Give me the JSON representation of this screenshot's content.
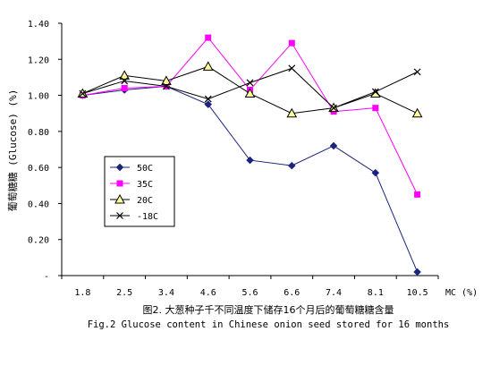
{
  "chart_data": {
    "type": "line",
    "ylabel": "葡萄糖糖 (Glucose) (%)",
    "xlabel": "MC (%)",
    "categories": [
      "1.8",
      "2.5",
      "3.4",
      "4.6",
      "5.6",
      "6.6",
      "7.4",
      "8.1",
      "10.5"
    ],
    "y_tick_labels": [
      "-",
      "0.20",
      "0.40",
      "0.60",
      "0.80",
      "1.00",
      "1.20",
      "1.40"
    ],
    "ylim": [
      0,
      1.4
    ],
    "grid": false,
    "legend_position": "left",
    "series": [
      {
        "name": "50C",
        "color": "#1a237e",
        "marker": "diamond",
        "values": [
          1.0,
          1.03,
          1.05,
          0.95,
          0.64,
          0.61,
          0.72,
          0.57,
          0.02
        ]
      },
      {
        "name": "35C",
        "color": "#ff00ff",
        "marker": "square",
        "values": [
          1.0,
          1.04,
          1.05,
          1.32,
          1.03,
          1.29,
          0.91,
          0.93,
          0.45
        ]
      },
      {
        "name": "20C",
        "color": "#000000",
        "marker": "triangle",
        "values": [
          1.01,
          1.11,
          1.08,
          1.16,
          1.01,
          0.9,
          0.93,
          1.01,
          0.9
        ]
      },
      {
        "name": "-18C",
        "color": "#000000",
        "marker": "x",
        "values": [
          1.01,
          1.08,
          1.05,
          0.98,
          1.07,
          1.15,
          0.93,
          1.02,
          1.13
        ]
      }
    ]
  },
  "caption": {
    "chinese": "图2. 大葱种子千不同温度下储存16个月后的葡萄糖糖含量",
    "english": "Fig.2 Glucose content in Chinese onion seed stored for 16 months"
  }
}
